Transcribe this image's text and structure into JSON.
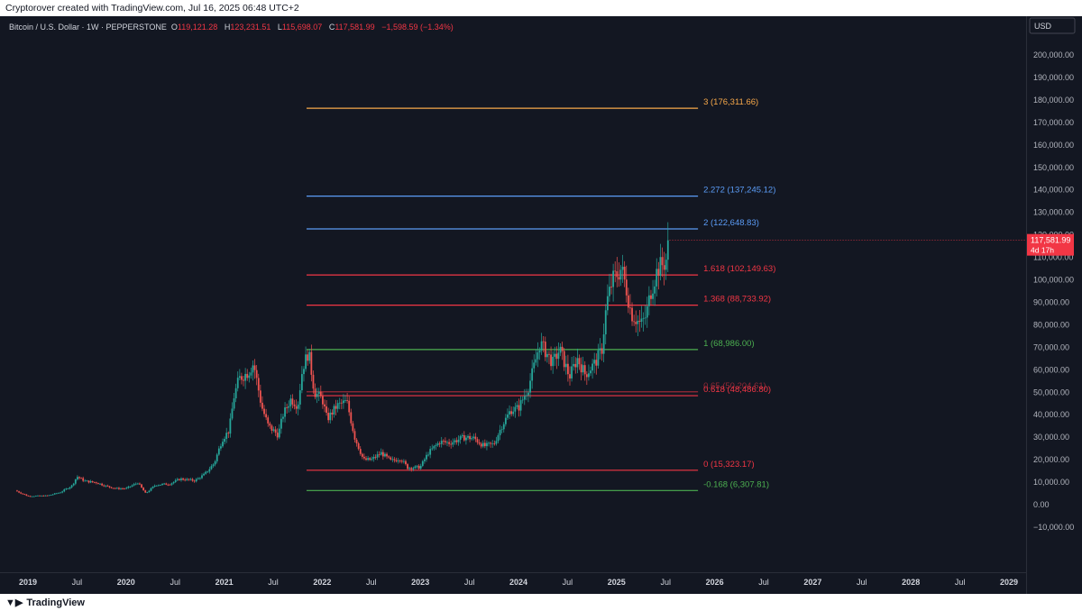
{
  "header": {
    "caption": "Cryptorover created with TradingView.com, Jul 16, 2025 06:48 UTC+2"
  },
  "footer": {
    "brand": "TradingView",
    "brand_icon": "tradingview-logo-icon"
  },
  "legend": {
    "symbol": "Bitcoin / U.S. Dollar · 1W · PEPPERSTONE",
    "open_label": "O",
    "open": "119,121.28",
    "high_label": "H",
    "high": "123,231.51",
    "low_label": "L",
    "low": "115,698.07",
    "close_label": "C",
    "close": "117,581.99",
    "change": "−1,598.59 (−1.34%)"
  },
  "colors": {
    "background": "#131722",
    "up": "#26a69a",
    "down": "#ef5350",
    "fib_red": "#f23645",
    "fib_green": "#4caf50",
    "fib_blue": "#5b9cf6",
    "fib_orange": "#f7a84a"
  },
  "chart_data": {
    "type": "candlestick",
    "currency": "USD",
    "ylim": [
      -15000,
      210000
    ],
    "y_ticks": [
      "200,000.00",
      "190,000.00",
      "180,000.00",
      "170,000.00",
      "160,000.00",
      "150,000.00",
      "140,000.00",
      "130,000.00",
      "120,000.00",
      "110,000.00",
      "100,000.00",
      "90,000.00",
      "80,000.00",
      "70,000.00",
      "60,000.00",
      "50,000.00",
      "40,000.00",
      "30,000.00",
      "20,000.00",
      "10,000.00",
      "0.00",
      "−10,000.00"
    ],
    "x_ticks": [
      {
        "label": "2019",
        "year": 2019.0,
        "bold": true
      },
      {
        "label": "Jul",
        "year": 2019.5
      },
      {
        "label": "2020",
        "year": 2020.0,
        "bold": true
      },
      {
        "label": "Jul",
        "year": 2020.5
      },
      {
        "label": "2021",
        "year": 2021.0,
        "bold": true
      },
      {
        "label": "Jul",
        "year": 2021.5
      },
      {
        "label": "2022",
        "year": 2022.0,
        "bold": true
      },
      {
        "label": "Jul",
        "year": 2022.5
      },
      {
        "label": "2023",
        "year": 2023.0,
        "bold": true
      },
      {
        "label": "Jul",
        "year": 2023.5
      },
      {
        "label": "2024",
        "year": 2024.0,
        "bold": true
      },
      {
        "label": "Jul",
        "year": 2024.5
      },
      {
        "label": "2025",
        "year": 2025.0,
        "bold": true
      },
      {
        "label": "Jul",
        "year": 2025.5
      },
      {
        "label": "2026",
        "year": 2026.0,
        "bold": true
      },
      {
        "label": "Jul",
        "year": 2026.5
      },
      {
        "label": "2027",
        "year": 2027.0,
        "bold": true
      },
      {
        "label": "Jul",
        "year": 2027.5
      },
      {
        "label": "2028",
        "year": 2028.0,
        "bold": true
      },
      {
        "label": "Jul",
        "year": 2028.5
      },
      {
        "label": "2029",
        "year": 2029.0,
        "bold": true
      }
    ],
    "last_price": {
      "label": "117,581.99",
      "countdown": "4d 17h",
      "value": 117581.99
    },
    "fib_levels": [
      {
        "label": "3 (176,311.66)",
        "value": 176311.66,
        "color": "#f7a84a"
      },
      {
        "label": "2.272 (137,245.12)",
        "value": 137245.12,
        "color": "#5b9cf6"
      },
      {
        "label": "2 (122,648.83)",
        "value": 122648.83,
        "color": "#5b9cf6"
      },
      {
        "label": "1.618 (102,149.63)",
        "value": 102149.63,
        "color": "#f23645"
      },
      {
        "label": "1.368 (88,733.92)",
        "value": 88733.92,
        "color": "#f23645"
      },
      {
        "label": "1 (68,986.00)",
        "value": 68986.0,
        "color": "#4caf50"
      },
      {
        "label": "0.65 (50,204.61)",
        "value": 50204.61,
        "color": "#f23645"
      },
      {
        "label": "0.618 (48,486.80)",
        "value": 48486.8,
        "color": "#f23645"
      },
      {
        "label": "0 (15,323.17)",
        "value": 15323.17,
        "color": "#f23645"
      },
      {
        "label": "-0.168 (6,307.81)",
        "value": 6307.81,
        "color": "#4caf50"
      }
    ],
    "fib_x_range": [
      2021.84,
      2025.83
    ],
    "price_path": [
      [
        2018.87,
        6300
      ],
      [
        2019.0,
        3800
      ],
      [
        2019.2,
        4000
      ],
      [
        2019.33,
        5500
      ],
      [
        2019.45,
        8500
      ],
      [
        2019.5,
        12500
      ],
      [
        2019.58,
        10500
      ],
      [
        2019.7,
        9800
      ],
      [
        2019.8,
        8200
      ],
      [
        2019.9,
        7200
      ],
      [
        2020.0,
        7200
      ],
      [
        2020.12,
        9800
      ],
      [
        2020.2,
        5000
      ],
      [
        2020.3,
        8800
      ],
      [
        2020.45,
        9300
      ],
      [
        2020.55,
        11500
      ],
      [
        2020.7,
        10700
      ],
      [
        2020.8,
        13500
      ],
      [
        2020.9,
        18500
      ],
      [
        2020.98,
        29000
      ],
      [
        2021.05,
        33000
      ],
      [
        2021.1,
        48000
      ],
      [
        2021.15,
        56000
      ],
      [
        2021.25,
        59000
      ],
      [
        2021.3,
        63000
      ],
      [
        2021.38,
        44000
      ],
      [
        2021.45,
        35000
      ],
      [
        2021.55,
        31000
      ],
      [
        2021.6,
        40000
      ],
      [
        2021.68,
        47000
      ],
      [
        2021.75,
        44000
      ],
      [
        2021.8,
        61000
      ],
      [
        2021.86,
        68000
      ],
      [
        2021.92,
        50000
      ],
      [
        2022.0,
        47000
      ],
      [
        2022.05,
        38000
      ],
      [
        2022.15,
        44000
      ],
      [
        2022.25,
        46000
      ],
      [
        2022.33,
        30000
      ],
      [
        2022.42,
        20000
      ],
      [
        2022.5,
        20000
      ],
      [
        2022.6,
        23000
      ],
      [
        2022.7,
        19500
      ],
      [
        2022.8,
        20500
      ],
      [
        2022.87,
        16500
      ],
      [
        2022.95,
        16500
      ],
      [
        2023.0,
        16800
      ],
      [
        2023.08,
        23000
      ],
      [
        2023.2,
        28000
      ],
      [
        2023.3,
        27500
      ],
      [
        2023.45,
        30000
      ],
      [
        2023.55,
        29500
      ],
      [
        2023.65,
        26000
      ],
      [
        2023.75,
        27000
      ],
      [
        2023.83,
        35000
      ],
      [
        2023.92,
        42000
      ],
      [
        2024.0,
        43000
      ],
      [
        2024.1,
        52000
      ],
      [
        2024.18,
        65000
      ],
      [
        2024.22,
        72000
      ],
      [
        2024.35,
        63000
      ],
      [
        2024.42,
        69000
      ],
      [
        2024.52,
        57000
      ],
      [
        2024.6,
        65000
      ],
      [
        2024.68,
        58000
      ],
      [
        2024.78,
        63000
      ],
      [
        2024.85,
        69000
      ],
      [
        2024.9,
        90000
      ],
      [
        2024.96,
        100000
      ],
      [
        2025.05,
        105000
      ],
      [
        2025.1,
        96000
      ],
      [
        2025.15,
        85000
      ],
      [
        2025.25,
        80000
      ],
      [
        2025.3,
        84000
      ],
      [
        2025.35,
        95000
      ],
      [
        2025.42,
        105000
      ],
      [
        2025.5,
        108000
      ],
      [
        2025.54,
        117600
      ]
    ]
  }
}
